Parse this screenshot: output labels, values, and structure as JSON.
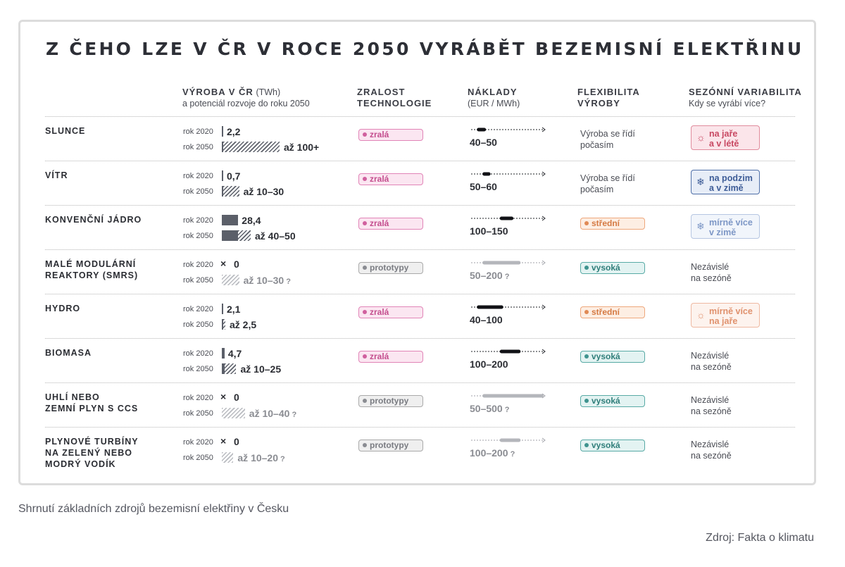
{
  "title": "Z ČEHO LZE V ČR V ROCE 2050 VYRÁBĚT BEZEMISNÍ ELEKTŘINU",
  "columns": {
    "production": {
      "bold": "VÝROBA V ČR",
      "unit": "(TWh)",
      "sub": "a potenciál rozvoje do roku 2050"
    },
    "maturity": {
      "line1": "ZRALOST",
      "line2": "TECHNOLOGIE"
    },
    "costs": {
      "bold": "NÁKLADY",
      "sub": "(EUR / MWh)"
    },
    "flexibility": {
      "line1": "FLEXIBILITA",
      "line2": "VÝROBY"
    },
    "seasonal": {
      "bold": "SEZÓNNÍ VARIABILITA",
      "sub": "Kdy se vyrábí více?"
    }
  },
  "year_labels": {
    "y2020": "rok 2020",
    "y2050": "rok 2050"
  },
  "chart_data": {
    "type": "table",
    "rows": [
      {
        "name": "SLUNCE",
        "v2020": 2.2,
        "v2020_label": "2,2",
        "v2050_min": 100,
        "v2050_max": 100,
        "v2050_label": "až 100+",
        "uncertain": false,
        "maturity": "zralá",
        "maturity_kind": "pink",
        "cost_min": 40,
        "cost_max": 50,
        "cost_label": "40–50",
        "cost_uncertain": false,
        "flexibility": "Výroba se řídí\npočasím",
        "flex_kind": "text",
        "seasonal": "na jaře\na v létě",
        "seasonal_kind": "s-pink",
        "seasonal_icon": "sun-icon"
      },
      {
        "name": "VÍTR",
        "v2020": 0.7,
        "v2020_label": "0,7",
        "v2050_min": 10,
        "v2050_max": 30,
        "v2050_label": "až 10–30",
        "uncertain": false,
        "maturity": "zralá",
        "maturity_kind": "pink",
        "cost_min": 50,
        "cost_max": 60,
        "cost_label": "50–60",
        "cost_uncertain": false,
        "flexibility": "Výroba se řídí\npočasím",
        "flex_kind": "text",
        "seasonal": "na podzim\na v zimě",
        "seasonal_kind": "s-blue",
        "seasonal_icon": "snowflake-icon"
      },
      {
        "name": "KONVENČNÍ JÁDRO",
        "v2020": 28.4,
        "v2020_label": "28,4",
        "v2050_min": 40,
        "v2050_max": 50,
        "v2050_label": "až 40–50",
        "uncertain": false,
        "maturity": "zralá",
        "maturity_kind": "pink",
        "cost_min": 100,
        "cost_max": 150,
        "cost_label": "100–150",
        "cost_uncertain": false,
        "flexibility": "střední",
        "flex_kind": "orange",
        "seasonal": "mírně více\nv zimě",
        "seasonal_kind": "s-lblue",
        "seasonal_icon": "snowflake-icon"
      },
      {
        "name": "MALÉ MODULÁRNÍ\nREAKTORY (SMRS)",
        "v2020": 0,
        "v2020_label": "0",
        "v2050_min": 10,
        "v2050_max": 30,
        "v2050_label": "až 10–30",
        "uncertain": true,
        "maturity": "prototypy",
        "maturity_kind": "grey",
        "cost_min": 50,
        "cost_max": 200,
        "cost_label": "50–200",
        "cost_uncertain": true,
        "flexibility": "vysoká",
        "flex_kind": "teal",
        "seasonal": "Nezávislé\nna sezóně",
        "seasonal_kind": "text",
        "seasonal_icon": ""
      },
      {
        "name": "HYDRO",
        "v2020": 2.1,
        "v2020_label": "2,1",
        "v2050_min": 2.5,
        "v2050_max": 2.5,
        "v2050_label": "až 2,5",
        "uncertain": false,
        "maturity": "zralá",
        "maturity_kind": "pink",
        "cost_min": 40,
        "cost_max": 100,
        "cost_label": "40–100",
        "cost_uncertain": false,
        "flexibility": "střední",
        "flex_kind": "orange",
        "seasonal": "mírně více\nna jaře",
        "seasonal_kind": "s-peach",
        "seasonal_icon": "sun-icon"
      },
      {
        "name": "BIOMASA",
        "v2020": 4.7,
        "v2020_label": "4,7",
        "v2050_min": 10,
        "v2050_max": 25,
        "v2050_label": "až 10–25",
        "uncertain": false,
        "maturity": "zralá",
        "maturity_kind": "pink",
        "cost_min": 100,
        "cost_max": 200,
        "cost_label": "100–200",
        "cost_uncertain": false,
        "flexibility": "vysoká",
        "flex_kind": "teal",
        "seasonal": "Nezávislé\nna sezóně",
        "seasonal_kind": "text",
        "seasonal_icon": ""
      },
      {
        "name": "UHLÍ NEBO\nZEMNÍ PLYN S CCS",
        "v2020": 0,
        "v2020_label": "0",
        "v2050_min": 10,
        "v2050_max": 40,
        "v2050_label": "až 10–40",
        "uncertain": true,
        "maturity": "prototypy",
        "maturity_kind": "grey",
        "cost_min": 50,
        "cost_max": 500,
        "cost_label": "50–500",
        "cost_uncertain": true,
        "flexibility": "vysoká",
        "flex_kind": "teal",
        "seasonal": "Nezávislé\nna sezóně",
        "seasonal_kind": "text",
        "seasonal_icon": ""
      },
      {
        "name": "PLYNOVÉ TURBÍNY\nNA ZELENÝ NEBO\nMODRÝ VODÍK",
        "v2020": 0,
        "v2020_label": "0",
        "v2050_min": 10,
        "v2050_max": 20,
        "v2050_label": "až 10–20",
        "uncertain": true,
        "maturity": "prototypy",
        "maturity_kind": "grey",
        "cost_min": 100,
        "cost_max": 200,
        "cost_label": "100–200",
        "cost_uncertain": true,
        "flexibility": "vysoká",
        "flex_kind": "teal",
        "seasonal": "Nezávislé\nna sezóně",
        "seasonal_kind": "text",
        "seasonal_icon": ""
      }
    ]
  },
  "caption": "Shrnutí základních zdrojů bezemisní elektřiny v Česku",
  "source": "Zdroj: Fakta o klimatu"
}
